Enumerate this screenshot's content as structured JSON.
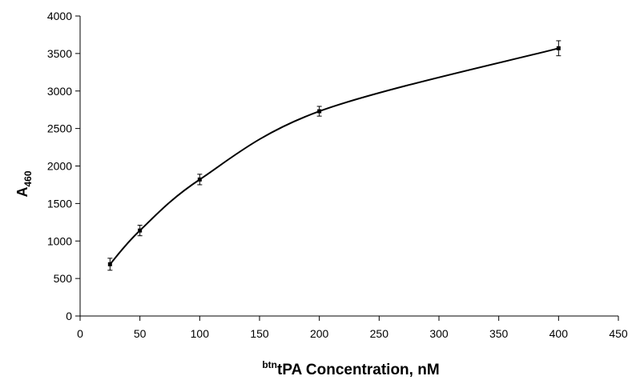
{
  "chart_data": {
    "type": "line",
    "title": "",
    "xlabel_prefix": "btn",
    "xlabel_main": "tPA Concentration, nM",
    "ylabel_main": "A",
    "ylabel_sub": "460",
    "xlim": [
      0,
      450
    ],
    "ylim": [
      0,
      4000
    ],
    "x_ticks": [
      0,
      50,
      100,
      150,
      200,
      250,
      300,
      350,
      400,
      450
    ],
    "y_ticks": [
      0,
      500,
      1000,
      1500,
      2000,
      2500,
      3000,
      3500,
      4000
    ],
    "grid": false,
    "legend": "none",
    "line_color": "#000000",
    "series": [
      {
        "x": [
          25,
          50,
          100,
          200,
          400
        ],
        "y": [
          690,
          1140,
          1820,
          2730,
          3570
        ],
        "error": [
          80,
          70,
          70,
          65,
          100
        ]
      }
    ]
  }
}
